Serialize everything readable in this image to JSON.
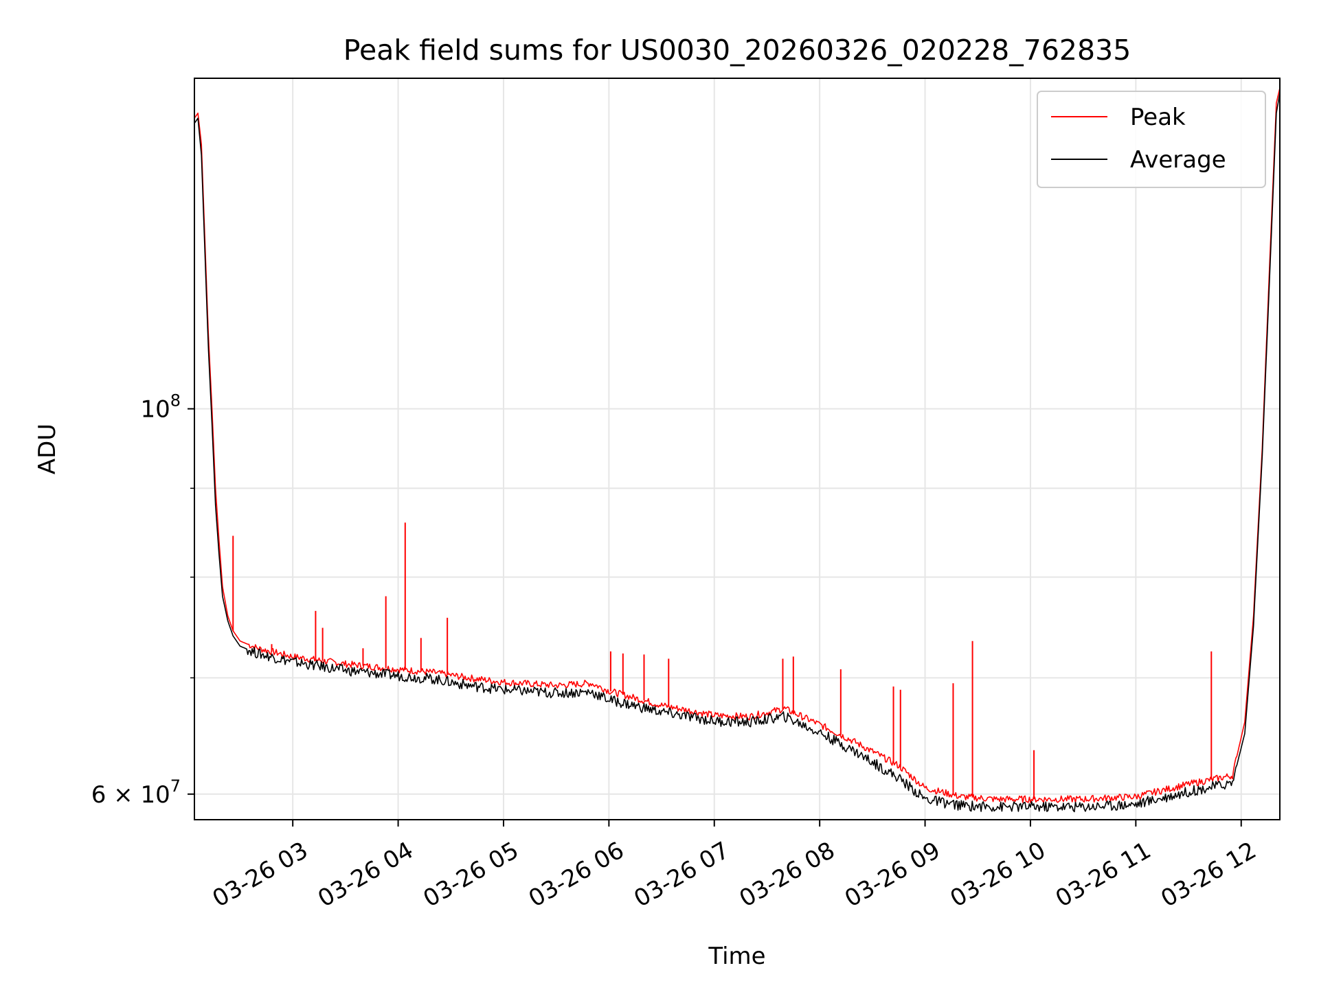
{
  "chart_data": {
    "type": "line",
    "title": "Peak field sums for US0030_20260326_020228_762835",
    "xlabel": "Time",
    "ylabel": "ADU",
    "y_scale": "log",
    "ylim": [
      58000000,
      155000000
    ],
    "xlim": [
      "03-26 02:04",
      "03-26 12:22"
    ],
    "grid": true,
    "legend_position": "upper right",
    "x_ticks": [
      {
        "value": "03-26 03:00",
        "label": "03-26 03"
      },
      {
        "value": "03-26 04:00",
        "label": "03-26 04"
      },
      {
        "value": "03-26 05:00",
        "label": "03-26 05"
      },
      {
        "value": "03-26 06:00",
        "label": "03-26 06"
      },
      {
        "value": "03-26 07:00",
        "label": "03-26 07"
      },
      {
        "value": "03-26 08:00",
        "label": "03-26 08"
      },
      {
        "value": "03-26 09:00",
        "label": "03-26 09"
      },
      {
        "value": "03-26 10:00",
        "label": "03-26 10"
      },
      {
        "value": "03-26 11:00",
        "label": "03-26 11"
      },
      {
        "value": "03-26 12:00",
        "label": "03-26 12"
      }
    ],
    "y_ticks_major": [
      {
        "value": 60000000,
        "label_mantissa": "6",
        "label_base": "10",
        "label_exp": "7"
      },
      {
        "value": 100000000,
        "label_mantissa": "",
        "label_base": "10",
        "label_exp": "8"
      }
    ],
    "y_ticks_minor": [
      70000000,
      80000000,
      90000000
    ],
    "series": [
      {
        "name": "Peak",
        "color": "#ff0000",
        "x": [
          "03-26 02:04",
          "03-26 02:06",
          "03-26 02:08",
          "03-26 02:10",
          "03-26 02:12",
          "03-26 02:14",
          "03-26 02:16",
          "03-26 02:18",
          "03-26 02:20",
          "03-26 02:23",
          "03-26 02:26",
          "03-26 02:30",
          "03-26 02:40",
          "03-26 03:00",
          "03-26 03:30",
          "03-26 04:00",
          "03-26 04:20",
          "03-26 04:40",
          "03-26 05:00",
          "03-26 05:30",
          "03-26 05:50",
          "03-26 06:00",
          "03-26 06:30",
          "03-26 07:00",
          "03-26 07:20",
          "03-26 07:40",
          "03-26 08:00",
          "03-26 08:20",
          "03-26 08:45",
          "03-26 09:00",
          "03-26 09:20",
          "03-26 09:40",
          "03-26 10:00",
          "03-26 10:30",
          "03-26 11:00",
          "03-26 11:30",
          "03-26 11:55",
          "03-26 12:02",
          "03-26 12:07",
          "03-26 12:12",
          "03-26 12:16",
          "03-26 12:20",
          "03-26 12:22"
        ],
        "y": [
          147000000,
          148000000,
          142000000,
          125000000,
          110000000,
          100000000,
          90000000,
          84000000,
          79000000,
          76000000,
          74500000,
          73500000,
          72800000,
          72000000,
          71300000,
          70800000,
          70500000,
          70000000,
          69600000,
          69300000,
          69500000,
          68800000,
          67500000,
          66600000,
          66500000,
          67200000,
          65800000,
          64300000,
          62300000,
          60500000,
          59800000,
          59600000,
          59600000,
          59600000,
          59800000,
          60800000,
          61500000,
          66000000,
          76000000,
          95000000,
          120000000,
          150000000,
          153000000
        ]
      },
      {
        "name": "Average",
        "color": "#000000",
        "x": [
          "03-26 02:04",
          "03-26 02:06",
          "03-26 02:08",
          "03-26 02:10",
          "03-26 02:12",
          "03-26 02:14",
          "03-26 02:16",
          "03-26 02:18",
          "03-26 02:20",
          "03-26 02:23",
          "03-26 02:26",
          "03-26 02:30",
          "03-26 02:40",
          "03-26 03:00",
          "03-26 03:30",
          "03-26 04:00",
          "03-26 04:20",
          "03-26 04:40",
          "03-26 05:00",
          "03-26 05:30",
          "03-26 05:50",
          "03-26 06:00",
          "03-26 06:30",
          "03-26 07:00",
          "03-26 07:20",
          "03-26 07:40",
          "03-26 08:00",
          "03-26 08:20",
          "03-26 08:45",
          "03-26 09:00",
          "03-26 09:20",
          "03-26 09:40",
          "03-26 10:00",
          "03-26 10:30",
          "03-26 11:00",
          "03-26 11:30",
          "03-26 11:55",
          "03-26 12:02",
          "03-26 12:07",
          "03-26 12:12",
          "03-26 12:16",
          "03-26 12:20",
          "03-26 12:22"
        ],
        "y": [
          146000000,
          147000000,
          140000000,
          123000000,
          108000000,
          98000000,
          88000000,
          82500000,
          78000000,
          75500000,
          74000000,
          73000000,
          72300000,
          71500000,
          70700000,
          70200000,
          69900000,
          69300000,
          68900000,
          68600000,
          68700000,
          68000000,
          66900000,
          66100000,
          66000000,
          66500000,
          65100000,
          63500000,
          61300000,
          59600000,
          59100000,
          59000000,
          59000000,
          59000000,
          59200000,
          60200000,
          60900000,
          65000000,
          75000000,
          94000000,
          118000000,
          148000000,
          152000000
        ]
      }
    ],
    "annotations": {
      "peak_spikes": [
        {
          "x": "03-26 02:26",
          "y": 84500000
        },
        {
          "x": "03-26 02:48",
          "y": 73200000
        },
        {
          "x": "03-26 03:13",
          "y": 76500000
        },
        {
          "x": "03-26 03:17",
          "y": 74800000
        },
        {
          "x": "03-26 03:40",
          "y": 72800000
        },
        {
          "x": "03-26 03:53",
          "y": 78000000
        },
        {
          "x": "03-26 04:04",
          "y": 86000000
        },
        {
          "x": "03-26 04:13",
          "y": 73800000
        },
        {
          "x": "03-26 04:28",
          "y": 75800000
        },
        {
          "x": "03-26 06:01",
          "y": 72500000
        },
        {
          "x": "03-26 06:08",
          "y": 72300000
        },
        {
          "x": "03-26 06:20",
          "y": 72200000
        },
        {
          "x": "03-26 06:34",
          "y": 71800000
        },
        {
          "x": "03-26 07:39",
          "y": 71800000
        },
        {
          "x": "03-26 07:45",
          "y": 72000000
        },
        {
          "x": "03-26 08:12",
          "y": 70800000
        },
        {
          "x": "03-26 08:42",
          "y": 69200000
        },
        {
          "x": "03-26 08:46",
          "y": 68900000
        },
        {
          "x": "03-26 09:16",
          "y": 69500000
        },
        {
          "x": "03-26 09:27",
          "y": 73500000
        },
        {
          "x": "03-26 10:02",
          "y": 63600000
        },
        {
          "x": "03-26 11:43",
          "y": 72500000
        }
      ]
    }
  }
}
